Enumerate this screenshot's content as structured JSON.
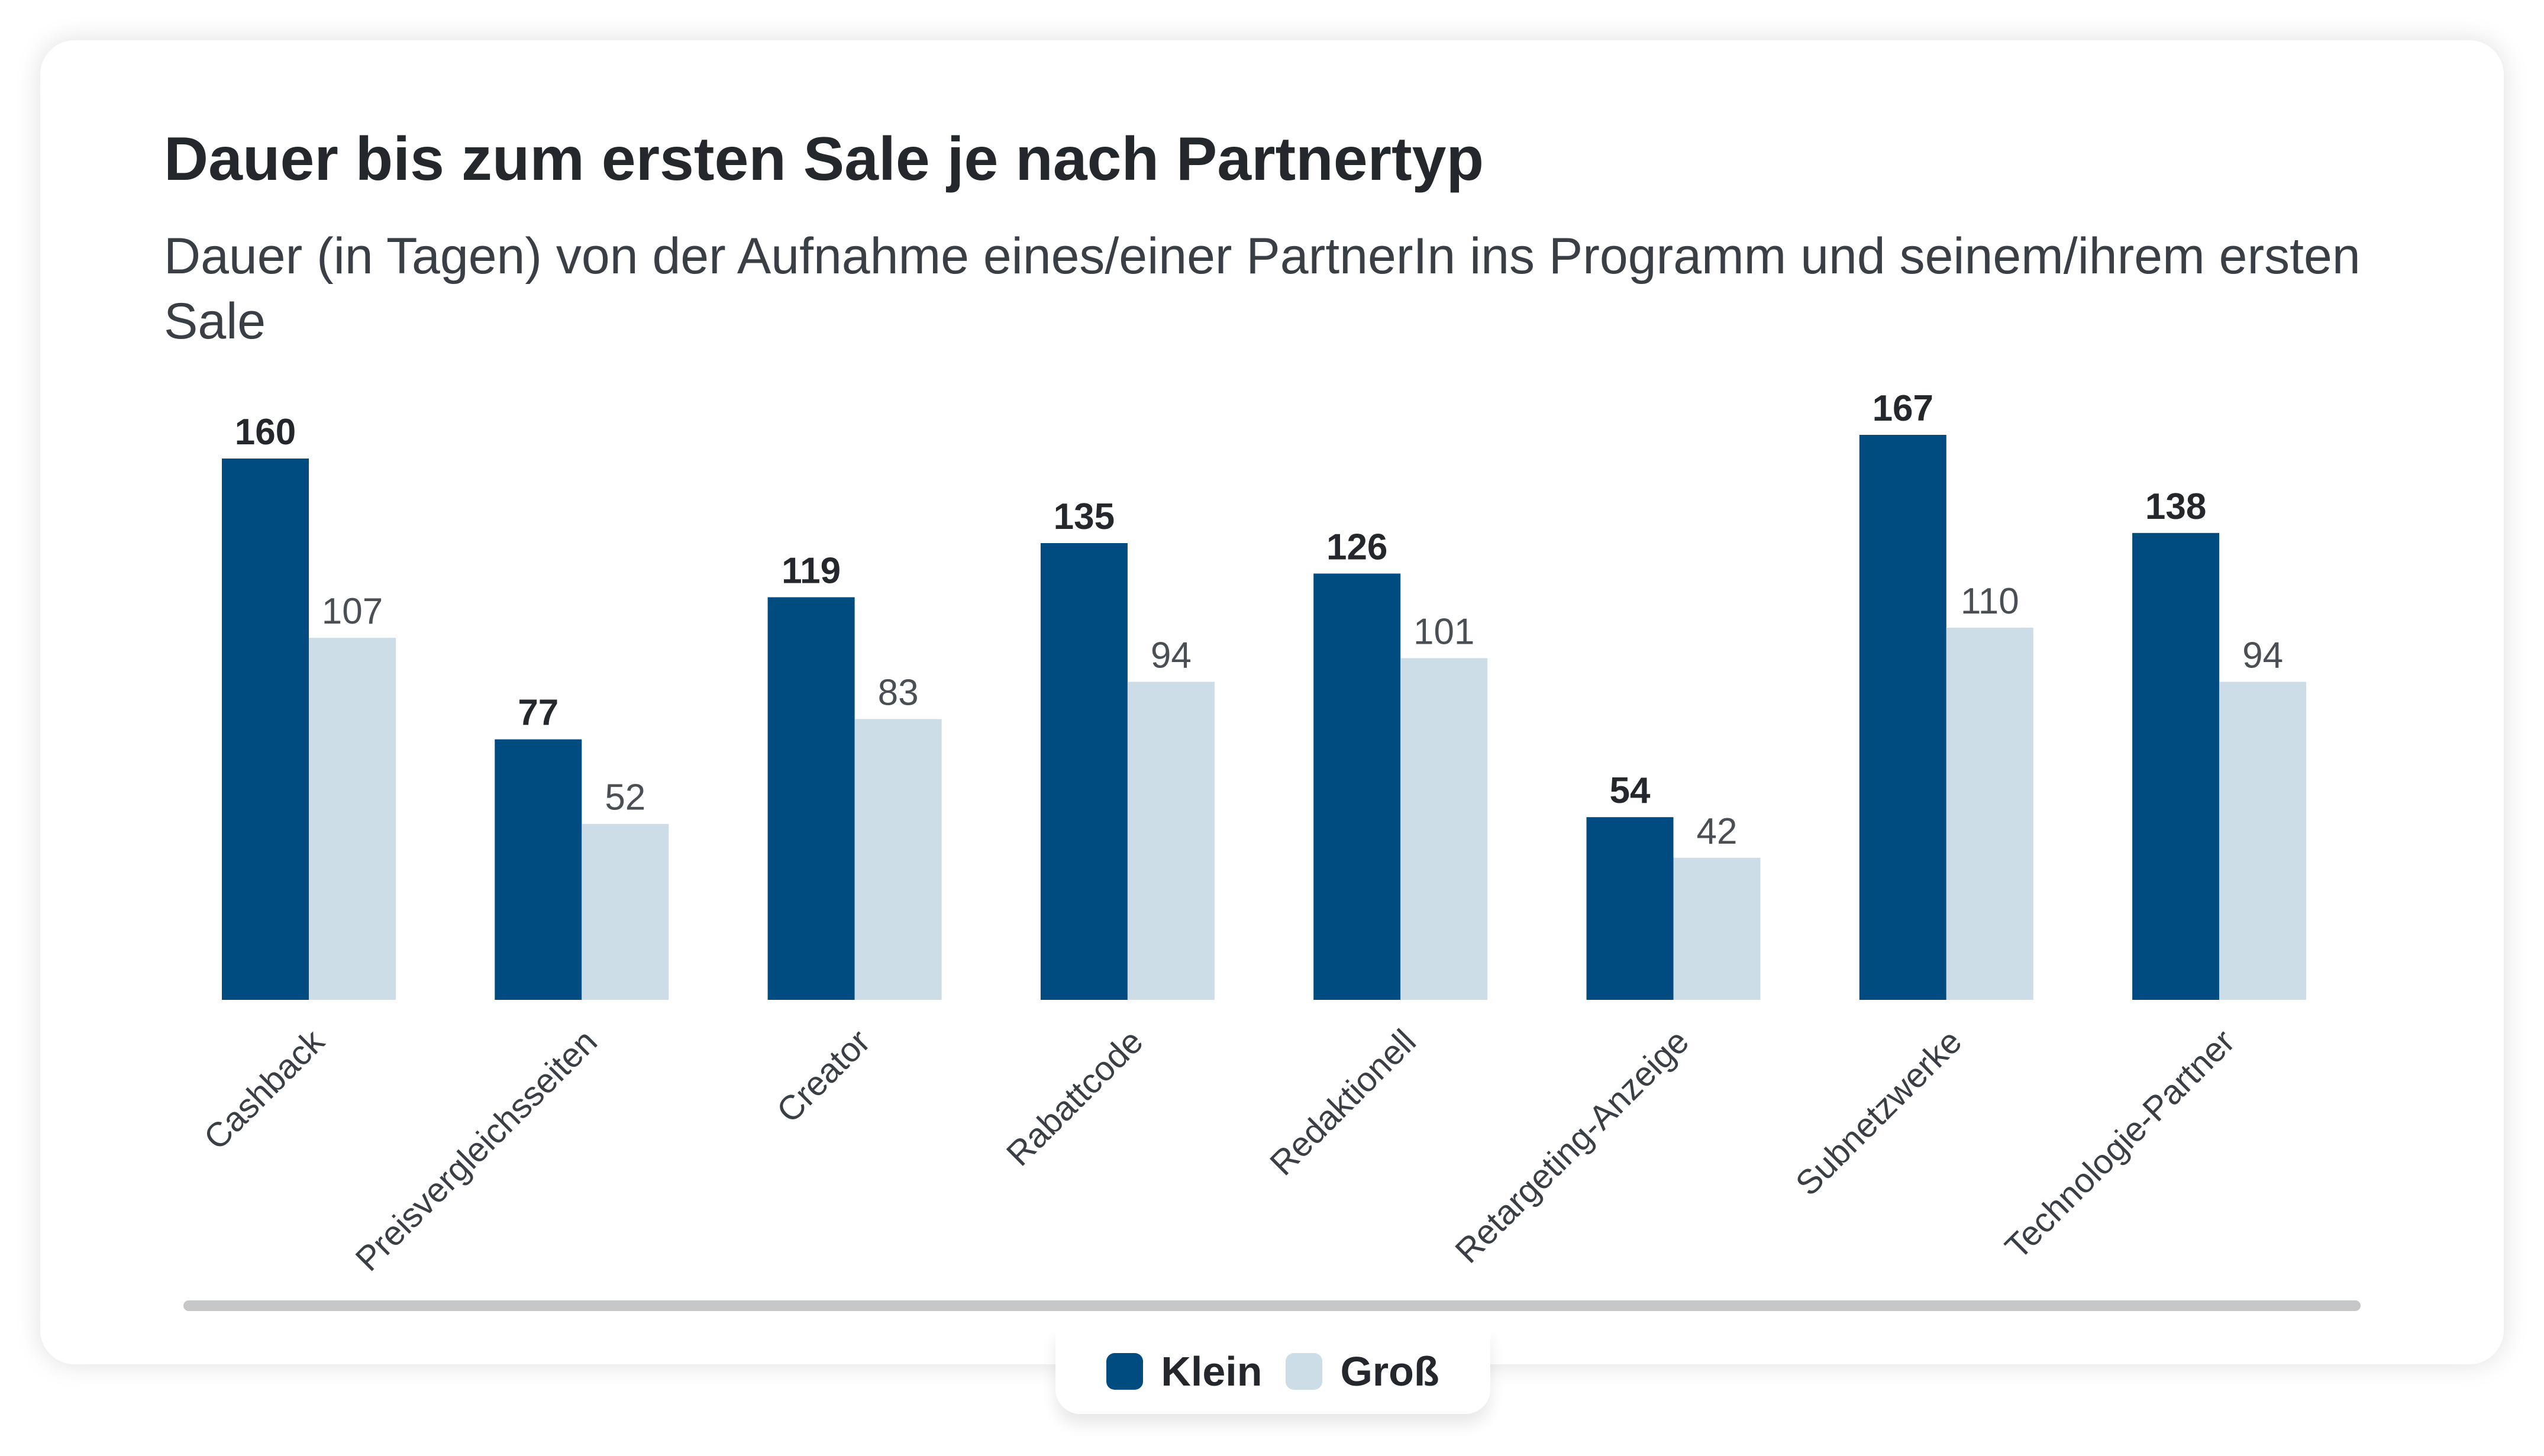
{
  "chart_data": {
    "type": "bar",
    "title": "Dauer bis zum ersten Sale je nach Partnertyp",
    "subtitle": "Dauer (in Tagen) von der Aufnahme eines/einer PartnerIn ins Programm und seinem/ihrem ersten Sale",
    "categories": [
      "Cashback",
      "Preisvergleichsseiten",
      "Creator",
      "Rabattcode",
      "Redaktionell",
      "Retargeting-Anzeige",
      "Subnetzwerke",
      "Technologie-Partner"
    ],
    "series": [
      {
        "name": "Klein",
        "color": "#004b7f",
        "values": [
          160,
          77,
          119,
          135,
          126,
          54,
          167,
          138
        ]
      },
      {
        "name": "Groß",
        "color": "#ccdde8",
        "values": [
          107,
          52,
          83,
          94,
          101,
          42,
          110,
          94
        ]
      }
    ],
    "ylim": [
      0,
      167
    ],
    "grid": false,
    "legend_position": "bottom-center"
  }
}
